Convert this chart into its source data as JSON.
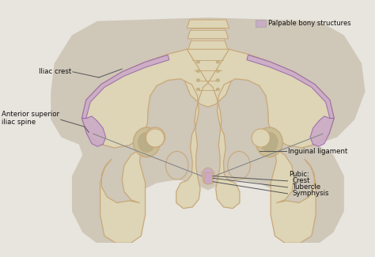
{
  "bg_color": "#e8e4de",
  "body_color": "#cdc5b8",
  "bone_color": "#ddd5b5",
  "bone_edge_color": "#c8a87a",
  "bone_edge_color2": "#b89860",
  "palpable_color": "#c9a8c8",
  "palpable_alpha": 0.85,
  "line_color": "#555555",
  "text_color": "#111111",
  "legend_box_color": "#c9a8c8",
  "legend_text": "Palpable bony structures",
  "labels": {
    "iliac_crest": "Iliac crest",
    "anterior_superior": "Anterior superior\niliac spine",
    "inguinal_ligament": "Inguinal ligament",
    "pubic_header": "Pubic:",
    "crest": "Crest",
    "tubercle": "Tubercle",
    "symphysis": "Symphysis"
  },
  "figsize": [
    4.74,
    3.25
  ],
  "dpi": 100
}
